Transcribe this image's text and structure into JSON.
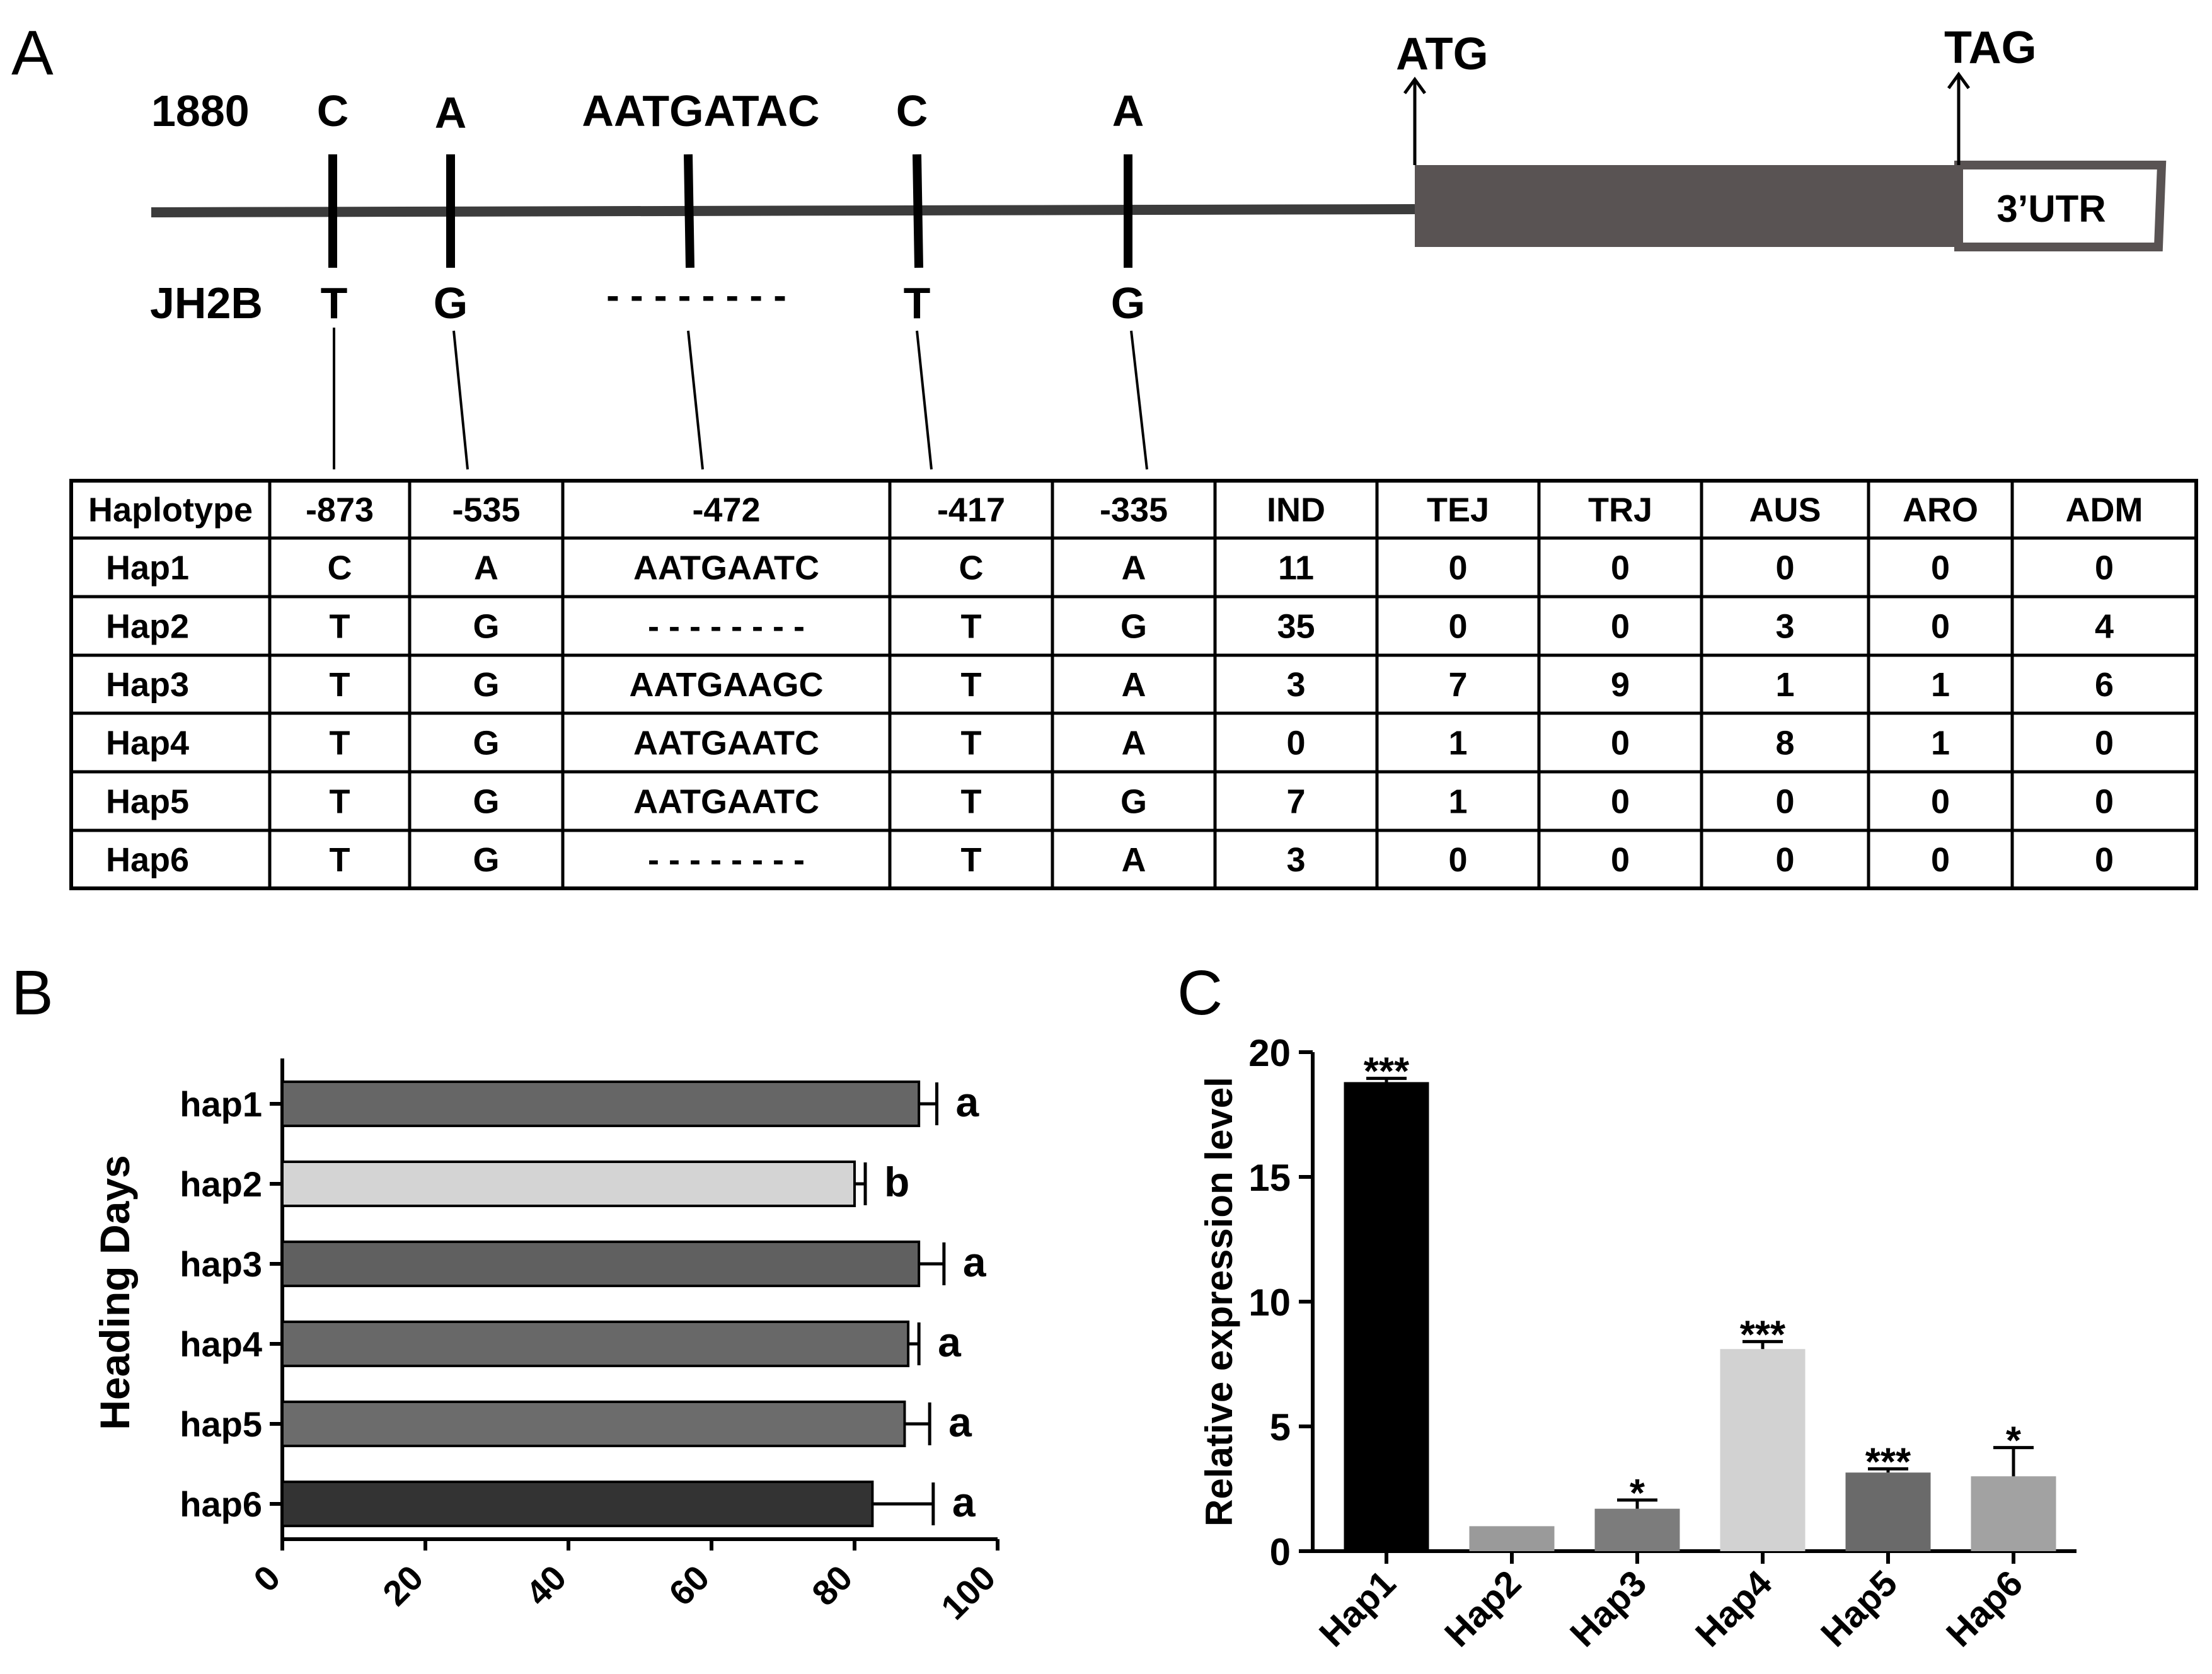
{
  "panels": {
    "a": {
      "label": "A"
    },
    "b": {
      "label": "B"
    },
    "c": {
      "label": "C"
    }
  },
  "gene": {
    "ref_name": "1880",
    "alt_name": "JH2B",
    "start_label": "ATG",
    "stop_label": "TAG",
    "utr_label": "3’UTR",
    "variants": [
      {
        "ref": "C",
        "alt": "T"
      },
      {
        "ref": "A",
        "alt": "G"
      },
      {
        "ref": "AATGATAC",
        "alt": "- - - - - - - -"
      },
      {
        "ref": "C",
        "alt": "T"
      },
      {
        "ref": "A",
        "alt": "G"
      }
    ]
  },
  "table": {
    "headers": [
      "Haplotype",
      "-873",
      "-535",
      "-472",
      "-417",
      "-335",
      "IND",
      "TEJ",
      "TRJ",
      "AUS",
      "ARO",
      "ADM"
    ],
    "rows": [
      [
        "Hap1",
        "C",
        "A",
        "AATGAATC",
        "C",
        "A",
        "11",
        "0",
        "0",
        "0",
        "0",
        "0"
      ],
      [
        "Hap2",
        "T",
        "G",
        "- - - - - - - -",
        "T",
        "G",
        "35",
        "0",
        "0",
        "3",
        "0",
        "4"
      ],
      [
        "Hap3",
        "T",
        "G",
        "AATGAAGC",
        "T",
        "A",
        "3",
        "7",
        "9",
        "1",
        "1",
        "6"
      ],
      [
        "Hap4",
        "T",
        "G",
        "AATGAATC",
        "T",
        "A",
        "0",
        "1",
        "0",
        "8",
        "1",
        "0"
      ],
      [
        "Hap5",
        "T",
        "G",
        "AATGAATC",
        "T",
        "G",
        "7",
        "1",
        "0",
        "0",
        "0",
        "0"
      ],
      [
        "Hap6",
        "T",
        "G",
        "- - - - - - - -",
        "T",
        "A",
        "3",
        "0",
        "0",
        "0",
        "0",
        "0"
      ]
    ]
  },
  "chart_data": [
    {
      "type": "bar",
      "orientation": "horizontal",
      "categories": [
        "hap1",
        "hap2",
        "hap3",
        "hap4",
        "hap5",
        "hap6"
      ],
      "values": [
        89,
        80,
        89,
        87.5,
        87,
        82.5
      ],
      "errors": [
        2.5,
        1.5,
        3.5,
        1.5,
        3.5,
        8.5
      ],
      "letters": [
        "a",
        "b",
        "a",
        "a",
        "a",
        "a"
      ],
      "colors": [
        "#666666",
        "#d4d4d4",
        "#606060",
        "#686868",
        "#6c6c6c",
        "#333333"
      ],
      "ylabel": "Heading Days",
      "xlim": [
        0,
        100
      ],
      "xticks": [
        "0",
        "20",
        "40",
        "60",
        "80",
        "100"
      ],
      "grid": false
    },
    {
      "type": "bar",
      "categories": [
        "Hap1",
        "Hap2",
        "Hap3",
        "Hap4",
        "Hap5",
        "Hap6"
      ],
      "values": [
        18.8,
        1.0,
        1.7,
        8.1,
        3.15,
        3.0
      ],
      "errors": [
        0.15,
        0.0,
        0.35,
        0.3,
        0.15,
        1.15
      ],
      "significance": [
        "***",
        "",
        "*",
        "***",
        "***",
        "*"
      ],
      "colors": [
        "#000000",
        "#9a9a9a",
        "#7c7c7c",
        "#d2d2d2",
        "#6a6a6a",
        "#a2a2a2"
      ],
      "ylabel": "Relative expression level",
      "ylim": [
        0,
        20
      ],
      "yticks": [
        "0",
        "5",
        "10",
        "15",
        "20"
      ],
      "grid": false
    }
  ]
}
